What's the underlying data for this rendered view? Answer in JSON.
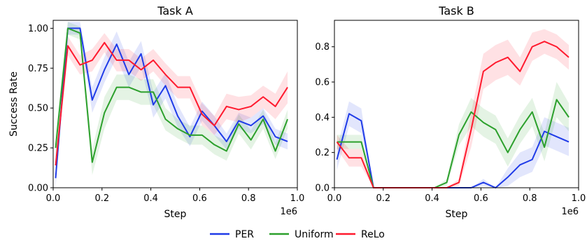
{
  "chart_data": [
    {
      "type": "line",
      "title": "Task A",
      "xlabel": "Step",
      "ylabel": "Success Rate",
      "x_offset_label": "1e6",
      "xlim": [
        0,
        1.0
      ],
      "ylim": [
        0,
        1.05
      ],
      "xticks": [
        0.0,
        0.2,
        0.4,
        0.6,
        0.8,
        1.0
      ],
      "xtick_labels": [
        "0.0",
        "0.2",
        "0.4",
        "0.6",
        "0.8",
        "1.0"
      ],
      "yticks": [
        0.0,
        0.25,
        0.5,
        0.75,
        1.0
      ],
      "ytick_labels": [
        "0.00",
        "0.25",
        "0.50",
        "0.75",
        "1.00"
      ],
      "grid": false,
      "series": [
        {
          "name": "PER",
          "color": "#1f3be8",
          "x": [
            0.01,
            0.06,
            0.11,
            0.16,
            0.21,
            0.26,
            0.31,
            0.36,
            0.41,
            0.46,
            0.51,
            0.56,
            0.61,
            0.66,
            0.71,
            0.76,
            0.81,
            0.86,
            0.91,
            0.96
          ],
          "y": [
            0.06,
            1.0,
            1.0,
            0.55,
            0.74,
            0.9,
            0.71,
            0.84,
            0.52,
            0.64,
            0.45,
            0.32,
            0.48,
            0.39,
            0.29,
            0.42,
            0.39,
            0.45,
            0.32,
            0.29
          ],
          "band": [
            0.06,
            0.04,
            0.04,
            0.08,
            0.08,
            0.08,
            0.08,
            0.08,
            0.08,
            0.08,
            0.07,
            0.06,
            0.06,
            0.06,
            0.05,
            0.05,
            0.05,
            0.05,
            0.05,
            0.05
          ]
        },
        {
          "name": "Uniform",
          "color": "#2ca02c",
          "x": [
            0.01,
            0.06,
            0.11,
            0.16,
            0.21,
            0.26,
            0.31,
            0.36,
            0.41,
            0.46,
            0.51,
            0.56,
            0.61,
            0.66,
            0.71,
            0.76,
            0.81,
            0.86,
            0.91,
            0.96
          ],
          "y": [
            0.25,
            1.0,
            0.97,
            0.16,
            0.47,
            0.63,
            0.63,
            0.6,
            0.6,
            0.43,
            0.37,
            0.33,
            0.33,
            0.27,
            0.23,
            0.4,
            0.3,
            0.43,
            0.23,
            0.43
          ],
          "band": [
            0.08,
            0.04,
            0.04,
            0.08,
            0.1,
            0.08,
            0.08,
            0.08,
            0.08,
            0.07,
            0.06,
            0.06,
            0.06,
            0.06,
            0.06,
            0.06,
            0.06,
            0.06,
            0.05,
            0.06
          ]
        },
        {
          "name": "ReLo",
          "color": "#ff1a2e",
          "x": [
            0.01,
            0.06,
            0.11,
            0.16,
            0.21,
            0.26,
            0.31,
            0.36,
            0.41,
            0.46,
            0.51,
            0.56,
            0.61,
            0.66,
            0.71,
            0.76,
            0.81,
            0.86,
            0.91,
            0.96
          ],
          "y": [
            0.14,
            0.89,
            0.77,
            0.8,
            0.91,
            0.8,
            0.8,
            0.74,
            0.8,
            0.71,
            0.63,
            0.63,
            0.46,
            0.39,
            0.51,
            0.49,
            0.51,
            0.57,
            0.51,
            0.63
          ],
          "band": [
            0.06,
            0.06,
            0.06,
            0.07,
            0.06,
            0.07,
            0.07,
            0.07,
            0.07,
            0.07,
            0.07,
            0.07,
            0.07,
            0.06,
            0.08,
            0.08,
            0.07,
            0.07,
            0.08,
            0.1
          ]
        }
      ]
    },
    {
      "type": "line",
      "title": "Task B",
      "xlabel": "Step",
      "ylabel": "",
      "x_offset_label": "1e6",
      "xlim": [
        0,
        1.0
      ],
      "ylim": [
        0,
        0.95
      ],
      "xticks": [
        0.0,
        0.2,
        0.4,
        0.6,
        0.8,
        1.0
      ],
      "xtick_labels": [
        "0.0",
        "0.2",
        "0.4",
        "0.6",
        "0.8",
        "1.0"
      ],
      "yticks": [
        0.0,
        0.2,
        0.4,
        0.6,
        0.8
      ],
      "ytick_labels": [
        "0.0",
        "0.2",
        "0.4",
        "0.6",
        "0.8"
      ],
      "grid": false,
      "series": [
        {
          "name": "PER",
          "color": "#1f3be8",
          "x": [
            0.01,
            0.06,
            0.11,
            0.16,
            0.21,
            0.26,
            0.31,
            0.36,
            0.41,
            0.46,
            0.51,
            0.56,
            0.61,
            0.66,
            0.71,
            0.76,
            0.81,
            0.86,
            0.91,
            0.96
          ],
          "y": [
            0.16,
            0.42,
            0.38,
            0.0,
            0.0,
            0.0,
            0.0,
            0.0,
            0.0,
            0.0,
            0.0,
            0.0,
            0.03,
            0.0,
            0.06,
            0.13,
            0.16,
            0.32,
            0.29,
            0.26
          ],
          "band": [
            0.06,
            0.07,
            0.07,
            0.0,
            0.0,
            0.0,
            0.0,
            0.0,
            0.0,
            0.0,
            0.0,
            0.0,
            0.02,
            0.0,
            0.05,
            0.07,
            0.07,
            0.08,
            0.08,
            0.08
          ]
        },
        {
          "name": "Uniform",
          "color": "#2ca02c",
          "x": [
            0.01,
            0.06,
            0.11,
            0.16,
            0.21,
            0.26,
            0.31,
            0.36,
            0.41,
            0.46,
            0.51,
            0.56,
            0.61,
            0.66,
            0.71,
            0.76,
            0.81,
            0.86,
            0.91,
            0.96
          ],
          "y": [
            0.26,
            0.26,
            0.26,
            0.0,
            0.0,
            0.0,
            0.0,
            0.0,
            0.0,
            0.03,
            0.3,
            0.43,
            0.37,
            0.33,
            0.2,
            0.33,
            0.43,
            0.23,
            0.5,
            0.4
          ],
          "band": [
            0.04,
            0.04,
            0.04,
            0.0,
            0.0,
            0.0,
            0.0,
            0.0,
            0.0,
            0.02,
            0.06,
            0.08,
            0.08,
            0.08,
            0.08,
            0.08,
            0.08,
            0.08,
            0.1,
            0.08
          ]
        },
        {
          "name": "ReLo",
          "color": "#ff1a2e",
          "x": [
            0.01,
            0.06,
            0.11,
            0.16,
            0.21,
            0.26,
            0.31,
            0.36,
            0.41,
            0.46,
            0.51,
            0.56,
            0.61,
            0.66,
            0.71,
            0.76,
            0.81,
            0.86,
            0.91,
            0.96
          ],
          "y": [
            0.26,
            0.17,
            0.17,
            0.0,
            0.0,
            0.0,
            0.0,
            0.0,
            0.0,
            0.0,
            0.03,
            0.33,
            0.66,
            0.71,
            0.74,
            0.66,
            0.8,
            0.83,
            0.8,
            0.74
          ],
          "band": [
            0.04,
            0.05,
            0.05,
            0.0,
            0.0,
            0.0,
            0.0,
            0.0,
            0.0,
            0.0,
            0.02,
            0.1,
            0.1,
            0.1,
            0.1,
            0.08,
            0.08,
            0.07,
            0.07,
            0.07
          ]
        }
      ]
    }
  ],
  "legend": {
    "placement": "bottom-center",
    "items": [
      {
        "label": "PER",
        "color": "#1f3be8"
      },
      {
        "label": "Uniform",
        "color": "#2ca02c"
      },
      {
        "label": "ReLo",
        "color": "#ff1a2e"
      }
    ]
  }
}
